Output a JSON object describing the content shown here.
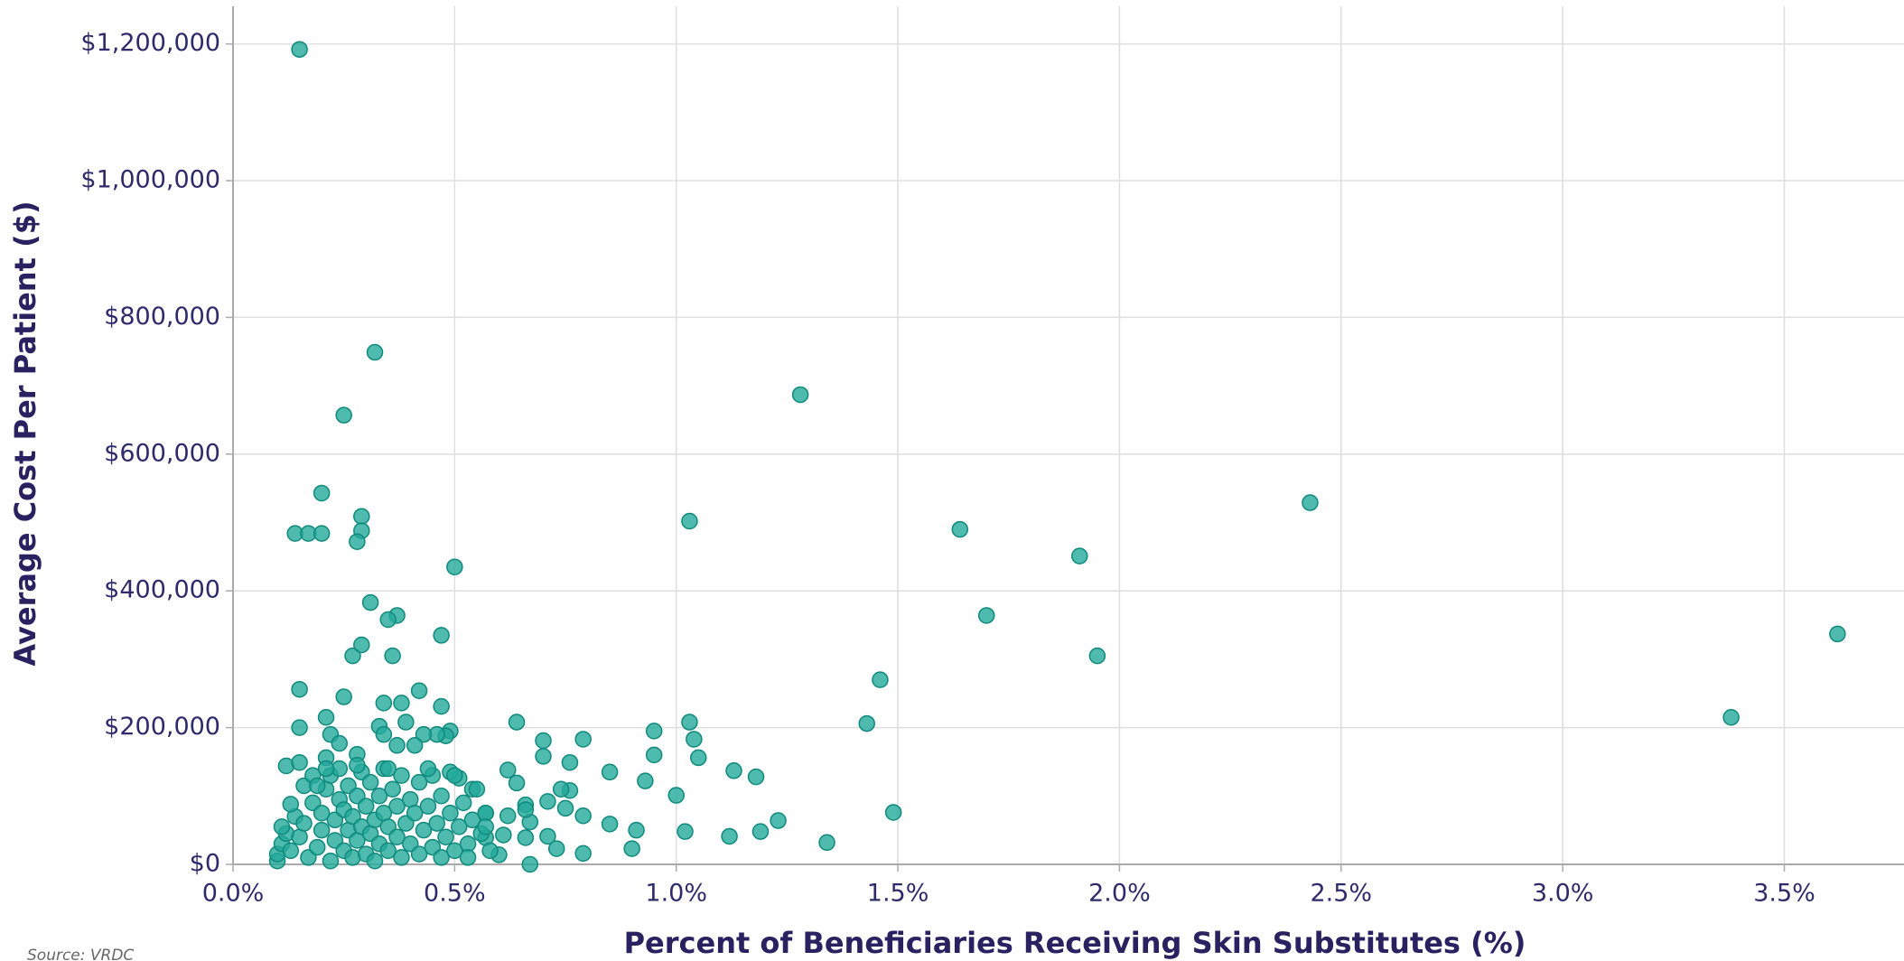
{
  "chart_data": {
    "type": "scatter",
    "x_label": "Percent of Beneficiaries Receiving Skin Substitutes (%)",
    "y_label": "Average Cost Per Patient ($)",
    "source": "Source: VRDC",
    "color": "#23a99a",
    "edge_color": "#0f8a7d",
    "grid": true,
    "xlim": [
      0,
      3.77
    ],
    "ylim": [
      0,
      1255000
    ],
    "xticks": [
      {
        "value": 0,
        "label": "0.0%"
      },
      {
        "value": 0.5,
        "label": "0.5%"
      },
      {
        "value": 1,
        "label": "1.0%"
      },
      {
        "value": 1.5,
        "label": "1.5%"
      },
      {
        "value": 2,
        "label": "2.0%"
      },
      {
        "value": 2.5,
        "label": "2.5%"
      },
      {
        "value": 3,
        "label": "3.0%"
      },
      {
        "value": 3.5,
        "label": "3.5%"
      }
    ],
    "yticks": [
      {
        "value": 0,
        "label": "$0"
      },
      {
        "value": 200000,
        "label": "$200,000"
      },
      {
        "value": 400000,
        "label": "$400,000"
      },
      {
        "value": 600000,
        "label": "$600,000"
      },
      {
        "value": 800000,
        "label": "$800,000"
      },
      {
        "value": 1000000,
        "label": "$1,000,000"
      },
      {
        "value": 1200000,
        "label": "$1,200,000"
      }
    ],
    "x": [
      0.15,
      0.32,
      0.25,
      1.28,
      0.2,
      0.14,
      0.17,
      0.2,
      0.29,
      0.29,
      0.28,
      0.5,
      1.03,
      1.64,
      1.91,
      2.43,
      1.7,
      1.95,
      3.62,
      3.38,
      1.46,
      1.43,
      1.49,
      1.34,
      0.31,
      0.37,
      0.35,
      0.36,
      0.27,
      0.29,
      0.47,
      0.15,
      0.25,
      0.42,
      0.34,
      0.38,
      0.47,
      0.21,
      0.15,
      0.33,
      0.39,
      0.64,
      1.03,
      0.95,
      1.04,
      1.05,
      1.13,
      1.18,
      1.23,
      1.19,
      1.12,
      1.02,
      1.0,
      0.93,
      0.95,
      0.85,
      0.79,
      0.7,
      0.7,
      0.76,
      0.76,
      0.74,
      0.75,
      0.79,
      0.85,
      0.91,
      0.9,
      0.79,
      0.73,
      0.71,
      0.71,
      0.67,
      0.66,
      0.67,
      0.66,
      0.66,
      0.62,
      0.64,
      0.62,
      0.61,
      0.6,
      0.57,
      0.57,
      0.54,
      0.51,
      0.49,
      0.49,
      0.48,
      0.46,
      0.43,
      0.41,
      0.37,
      0.34,
      0.22,
      0.24,
      0.12,
      0.15,
      0.21,
      0.28,
      0.1,
      0.1,
      0.11,
      0.12,
      0.11,
      0.13,
      0.14,
      0.13,
      0.15,
      0.16,
      0.16,
      0.17,
      0.18,
      0.18,
      0.19,
      0.2,
      0.2,
      0.21,
      0.22,
      0.22,
      0.23,
      0.23,
      0.24,
      0.24,
      0.25,
      0.25,
      0.26,
      0.26,
      0.27,
      0.27,
      0.28,
      0.28,
      0.29,
      0.29,
      0.3,
      0.3,
      0.31,
      0.31,
      0.32,
      0.32,
      0.33,
      0.33,
      0.34,
      0.34,
      0.35,
      0.35,
      0.36,
      0.37,
      0.37,
      0.38,
      0.38,
      0.39,
      0.4,
      0.4,
      0.41,
      0.42,
      0.42,
      0.43,
      0.44,
      0.45,
      0.45,
      0.46,
      0.47,
      0.47,
      0.48,
      0.49,
      0.5,
      0.5,
      0.51,
      0.52,
      0.53,
      0.53,
      0.54,
      0.55,
      0.56,
      0.57,
      0.58,
      0.57,
      0.21,
      0.19,
      0.28,
      0.35,
      0.44
    ],
    "values": [
      1192000,
      749000,
      657000,
      687000,
      543000,
      484000,
      484000,
      484000,
      509000,
      488000,
      472000,
      435000,
      502000,
      490000,
      451000,
      529000,
      364000,
      305000,
      337000,
      215000,
      270000,
      206000,
      76000,
      32000,
      383000,
      364000,
      358000,
      305000,
      305000,
      321000,
      335000,
      256000,
      245000,
      254000,
      236000,
      236000,
      231000,
      215000,
      200000,
      202000,
      208000,
      208000,
      208000,
      195000,
      183000,
      156000,
      137000,
      128000,
      64000,
      48000,
      41000,
      48000,
      101000,
      122000,
      160000,
      135000,
      183000,
      181000,
      158000,
      149000,
      108000,
      110000,
      82000,
      71000,
      59000,
      50000,
      23000,
      16000,
      23000,
      41000,
      92000,
      0,
      39000,
      62000,
      87000,
      80000,
      138000,
      119000,
      71000,
      43000,
      14000,
      39000,
      75000,
      110000,
      126000,
      135000,
      195000,
      188000,
      190000,
      190000,
      174000,
      174000,
      190000,
      190000,
      177000,
      144000,
      149000,
      156000,
      161000,
      5000,
      15000,
      30000,
      45000,
      55000,
      20000,
      70000,
      88000,
      40000,
      60000,
      115000,
      10000,
      90000,
      130000,
      25000,
      50000,
      75000,
      110000,
      5000,
      130000,
      35000,
      65000,
      95000,
      140000,
      20000,
      80000,
      50000,
      115000,
      10000,
      70000,
      35000,
      100000,
      55000,
      135000,
      15000,
      85000,
      45000,
      120000,
      5000,
      65000,
      30000,
      100000,
      75000,
      140000,
      20000,
      55000,
      110000,
      40000,
      85000,
      10000,
      130000,
      60000,
      30000,
      95000,
      75000,
      15000,
      120000,
      50000,
      85000,
      25000,
      130000,
      60000,
      10000,
      100000,
      40000,
      75000,
      20000,
      130000,
      55000,
      90000,
      30000,
      10000,
      65000,
      110000,
      45000,
      75000,
      20000,
      55000,
      140000,
      115000,
      145000,
      140000,
      140000
    ]
  }
}
